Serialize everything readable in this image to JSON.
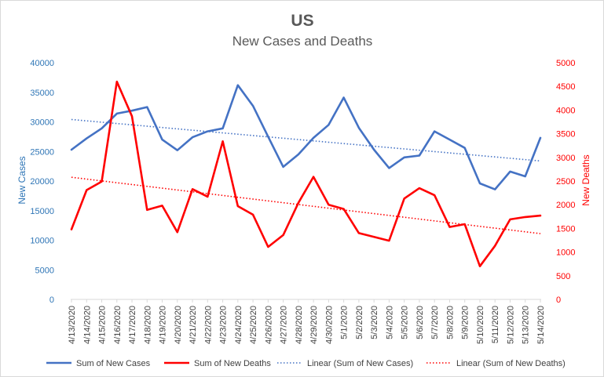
{
  "chart_data": {
    "type": "line",
    "title": "US",
    "subtitle": "New Cases and Deaths",
    "categories": [
      "4/13/2020",
      "4/14/2020",
      "4/15/2020",
      "4/16/2020",
      "4/17/2020",
      "4/18/2020",
      "4/19/2020",
      "4/20/2020",
      "4/21/2020",
      "4/22/2020",
      "4/23/2020",
      "4/24/2020",
      "4/25/2020",
      "4/26/2020",
      "4/27/2020",
      "4/28/2020",
      "4/29/2020",
      "4/30/2020",
      "5/1/2020",
      "5/2/2020",
      "5/3/2020",
      "5/4/2020",
      "5/5/2020",
      "5/6/2020",
      "5/7/2020",
      "5/8/2020",
      "5/9/2020",
      "5/10/2020",
      "5/11/2020",
      "5/12/2020",
      "5/13/2020",
      "5/14/2020"
    ],
    "left_axis": {
      "label": "New Cases",
      "min": 0,
      "max": 40000,
      "step": 5000,
      "color": "#2e75b6",
      "ticks": [
        "0",
        "5000",
        "10000",
        "15000",
        "20000",
        "25000",
        "30000",
        "35000",
        "40000"
      ]
    },
    "right_axis": {
      "label": "New Deaths",
      "min": 0,
      "max": 5000,
      "step": 500,
      "color": "#ff0000",
      "ticks": [
        "0",
        "500",
        "1000",
        "1500",
        "2000",
        "2500",
        "3000",
        "3500",
        "4000",
        "4500",
        "5000"
      ]
    },
    "gridlines": false,
    "legend_position": "bottom",
    "series": [
      {
        "name": "Sum of New Cases",
        "axis": "left",
        "style": "solid",
        "color": "#4472c4",
        "values": [
          25300,
          27200,
          28900,
          31400,
          31900,
          32500,
          27000,
          25200,
          27400,
          28400,
          28900,
          36200,
          32700,
          27500,
          22400,
          24500,
          27300,
          29500,
          34100,
          29000,
          25300,
          22200,
          24000,
          24300,
          28400,
          27000,
          25600,
          19600,
          18600,
          21600,
          20800,
          27300
        ]
      },
      {
        "name": "Sum of New Deaths",
        "axis": "right",
        "style": "solid",
        "color": "#ff0000",
        "values": [
          1480,
          2310,
          2490,
          4600,
          3870,
          1890,
          1980,
          1420,
          2330,
          2170,
          3340,
          1970,
          1790,
          1110,
          1360,
          2040,
          2590,
          2000,
          1910,
          1400,
          1320,
          1240,
          2130,
          2350,
          2200,
          1530,
          1590,
          700,
          1130,
          1690,
          1740,
          1770
        ]
      },
      {
        "name": "Linear (Sum of New Cases)",
        "axis": "left",
        "style": "dotted",
        "color": "#4472c4",
        "trend": [
          30400,
          23400
        ]
      },
      {
        "name": "Linear (Sum of New Deaths)",
        "axis": "right",
        "style": "dotted",
        "color": "#ff0000",
        "trend": [
          2580,
          1390
        ]
      }
    ]
  }
}
